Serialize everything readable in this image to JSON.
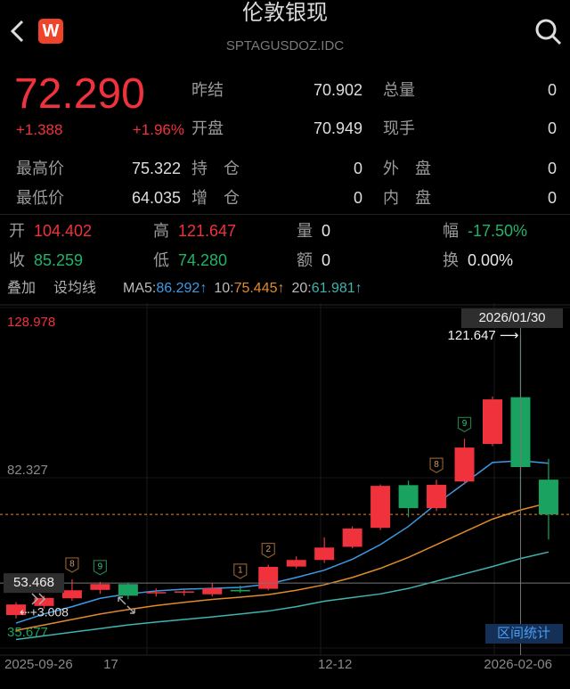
{
  "header": {
    "title": "伦敦银现",
    "code": "SPTAGUSDOZ.IDC",
    "logo": "W"
  },
  "quote": {
    "price": "72.290",
    "change": "+1.388",
    "change_pct": "+1.96%"
  },
  "stats_top": [
    [
      {
        "label": "昨结",
        "value": "70.902"
      },
      {
        "label": "总量",
        "value": "0"
      }
    ],
    [
      {
        "label": "开盘",
        "value": "70.949"
      },
      {
        "label": "现手",
        "value": "0"
      }
    ]
  ],
  "stats_bottom": [
    [
      {
        "label": "最高价",
        "value": "75.322"
      },
      {
        "label": "持　仓",
        "value": "0"
      },
      {
        "label": "外　盘",
        "value": "0"
      }
    ],
    [
      {
        "label": "最低价",
        "value": "64.035"
      },
      {
        "label": "增　仓",
        "value": "0"
      },
      {
        "label": "内　盘",
        "value": "0"
      }
    ]
  ],
  "ohlc_rows": [
    [
      {
        "label": "开",
        "value": "104.402",
        "color": "#f0323c"
      },
      {
        "label": "高",
        "value": "121.647",
        "color": "#f0323c"
      },
      {
        "label": "量",
        "value": "0",
        "color": "#e6e6e6"
      },
      {
        "label": "幅",
        "value": "-17.50%",
        "color": "#22b26a"
      }
    ],
    [
      {
        "label": "收",
        "value": "85.259",
        "color": "#22b26a"
      },
      {
        "label": "低",
        "value": "74.280",
        "color": "#22b26a"
      },
      {
        "label": "额",
        "value": "0",
        "color": "#e6e6e6"
      },
      {
        "label": "换",
        "value": "0.00%",
        "color": "#e6e6e6"
      }
    ]
  ],
  "toolbar": [
    "叠加",
    "设均线"
  ],
  "chart_data": {
    "type": "candlestick",
    "categories": [
      "2025-09-26",
      null,
      null,
      "17",
      null,
      null,
      null,
      null,
      null,
      null,
      null,
      "12-12",
      null,
      null,
      null,
      null,
      null,
      null,
      null,
      "2026-02-06"
    ],
    "open": [
      44.7,
      47.2,
      49.3,
      51.6,
      53.2,
      50.7,
      50.9,
      50.4,
      51.6,
      51.9,
      58.0,
      59.8,
      63.4,
      68.6,
      80.3,
      74.0,
      81.3,
      91.6,
      104.402,
      81.8
    ],
    "high": [
      48.2,
      50.0,
      54.5,
      53.8,
      53.6,
      52.0,
      51.6,
      53.5,
      52.8,
      58.5,
      60.8,
      66.0,
      69.0,
      80.5,
      81.5,
      81.8,
      93.0,
      104.6,
      121.647,
      87.5
    ],
    "low": [
      43.8,
      46.5,
      48.6,
      50.5,
      49.0,
      49.8,
      50.0,
      49.8,
      50.8,
      51.5,
      57.5,
      59.0,
      63.0,
      68.0,
      71.5,
      73.2,
      80.5,
      91.0,
      74.28,
      65.4
    ],
    "close": [
      47.6,
      49.4,
      51.5,
      53.2,
      50.0,
      51.0,
      51.2,
      52.0,
      51.2,
      57.9,
      59.8,
      63.2,
      68.4,
      80.1,
      74.0,
      80.4,
      90.6,
      103.8,
      85.259,
      72.29
    ],
    "up_color": "#f0323c",
    "down_color": "#1aa260",
    "ylim": [
      35.677,
      128.978
    ],
    "yticks": [
      35.677,
      82.327,
      128.978
    ],
    "series": [
      {
        "name": "MA5:",
        "legend_value": "86.292↑",
        "color": "#3b9be6",
        "values": [
          42.5,
          45,
          47,
          49.3,
          50.5,
          51.3,
          51.8,
          52,
          52.3,
          53.2,
          55,
          57,
          60,
          64,
          69,
          75.2,
          80.8,
          86.5,
          87,
          86.292
        ]
      },
      {
        "name": "10:",
        "legend_value": "75.445↑",
        "color": "#e08a2c",
        "values": [
          40.5,
          42,
          43.5,
          45,
          46.2,
          47.3,
          48.2,
          49,
          49.6,
          50.3,
          51.5,
          53,
          55,
          57.5,
          60.5,
          64,
          67.5,
          71,
          73.5,
          75.445
        ]
      },
      {
        "name": "20:",
        "legend_value": "61.981↑",
        "color": "#3fb3b0",
        "values": [
          38,
          39,
          40,
          41,
          42,
          42.8,
          43.5,
          44.2,
          45,
          45.8,
          47,
          48.5,
          49.5,
          50.5,
          52,
          54,
          56,
          58,
          60.2,
          61.981
        ]
      }
    ],
    "price_line": 72.29,
    "crosshair": {
      "date_label": "2026/01/30",
      "y_value": 53.468
    },
    "high_label": "121.647 ⟶",
    "annotation": "⇠+3.008",
    "markers": [
      {
        "label": "8",
        "color": "#8a5a2e"
      },
      {
        "label": "9",
        "color": "#1f7a4d"
      },
      {
        "label": "1",
        "color": "#8a5a2e"
      },
      {
        "label": "2",
        "color": "#8a5a2e"
      },
      {
        "label": "8",
        "color": "#8a5a2e"
      },
      {
        "label": "9",
        "color": "#1f7a4d"
      }
    ],
    "button": "区间统计"
  }
}
